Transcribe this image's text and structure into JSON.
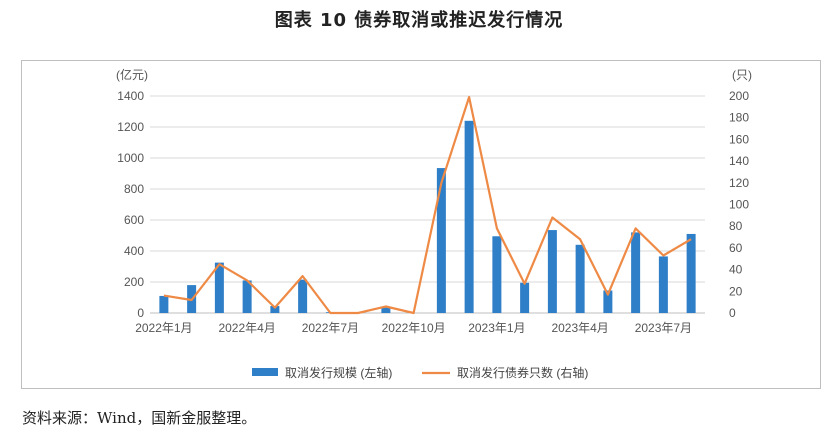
{
  "figure_title": "图表 10  债券取消或推迟发行情况",
  "source_note": "资料来源：Wind，国新金服整理。",
  "chart_data": {
    "type": "bar",
    "left_unit": "(亿元)",
    "right_unit": "(只)",
    "categories": [
      "2022年1月",
      "2022年2月",
      "2022年3月",
      "2022年4月",
      "2022年5月",
      "2022年6月",
      "2022年7月",
      "2022年8月",
      "2022年9月",
      "2022年10月",
      "2022年11月",
      "2022年12月",
      "2023年1月",
      "2023年2月",
      "2023年3月",
      "2023年4月",
      "2023年5月",
      "2023年6月",
      "2023年7月",
      "2023年8月"
    ],
    "x_tick_labels": [
      "2022年1月",
      "2022年4月",
      "2022年7月",
      "2022年10月",
      "2023年1月",
      "2023年4月",
      "2023年7月"
    ],
    "x_tick_indices": [
      0,
      3,
      6,
      9,
      12,
      15,
      18
    ],
    "left_ylim": [
      0,
      1400
    ],
    "left_yticks": [
      0,
      200,
      400,
      600,
      800,
      1000,
      1200,
      1400
    ],
    "right_ylim": [
      0,
      200
    ],
    "right_yticks": [
      0,
      20,
      40,
      60,
      80,
      100,
      120,
      140,
      160,
      180,
      200
    ],
    "grid": true,
    "legend_position": "bottom",
    "series": [
      {
        "name": "取消发行规模 (左轴)",
        "type": "bar",
        "axis": "left",
        "color": "#2e7fc8",
        "values": [
          110,
          180,
          325,
          210,
          45,
          215,
          5,
          0,
          35,
          0,
          935,
          1240,
          495,
          195,
          535,
          440,
          145,
          520,
          365,
          510
        ]
      },
      {
        "name": "取消发行债券只数 (右轴)",
        "type": "line",
        "axis": "right",
        "color": "#ee8a45",
        "values": [
          16,
          12,
          45,
          30,
          5,
          34,
          0,
          0,
          6,
          0,
          120,
          199,
          78,
          27,
          88,
          68,
          17,
          78,
          53,
          68
        ]
      }
    ]
  }
}
